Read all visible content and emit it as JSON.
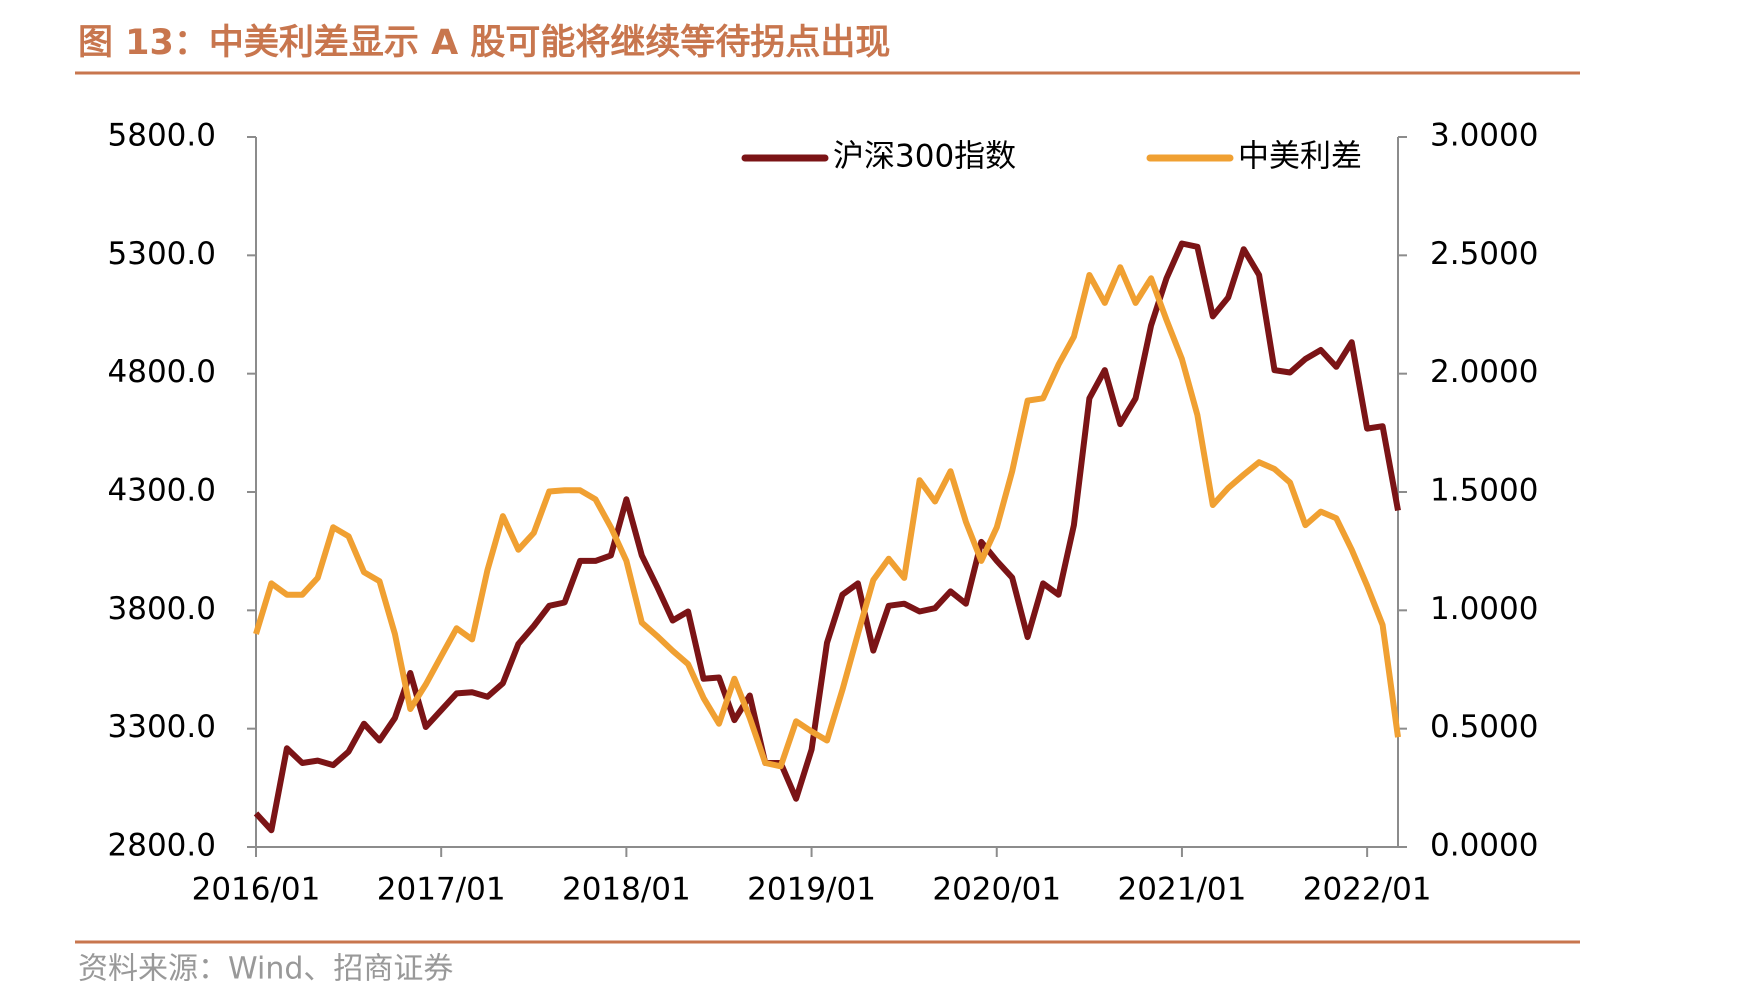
{
  "chart_data": {
    "type": "line",
    "title": "图 13：中美利差显示 A 股可能将继续等待拐点出现",
    "source": "资料来源：Wind、招商证券",
    "categories": [
      "2016/01",
      null,
      null,
      null,
      null,
      null,
      null,
      null,
      null,
      null,
      null,
      null,
      "2017/01",
      null,
      null,
      null,
      null,
      null,
      null,
      null,
      null,
      null,
      null,
      null,
      "2018/01",
      null,
      null,
      null,
      null,
      null,
      null,
      null,
      null,
      null,
      null,
      null,
      "2019/01",
      null,
      null,
      null,
      null,
      null,
      null,
      null,
      null,
      null,
      null,
      null,
      "2020/01",
      null,
      null,
      null,
      null,
      null,
      null,
      null,
      null,
      null,
      null,
      null,
      "2021/01",
      null,
      null,
      null,
      null,
      null,
      null,
      null,
      null,
      null,
      null,
      null,
      "2022/01",
      null,
      null
    ],
    "series": [
      {
        "name": "沪深300指数",
        "color": "#7b1416",
        "axis": "y",
        "values": [
          2942,
          2871,
          3217,
          3155,
          3165,
          3146,
          3203,
          3321,
          3250,
          3345,
          3535,
          3307,
          3378,
          3449,
          3454,
          3435,
          3492,
          3658,
          3734,
          3819,
          3833,
          4009,
          4009,
          4032,
          4269,
          4032,
          3899,
          3757,
          3795,
          3511,
          3516,
          3336,
          3440,
          3155,
          3155,
          3004,
          3212,
          3663,
          3866,
          3914,
          3630,
          3819,
          3828,
          3795,
          3809,
          3880,
          3828,
          4089,
          4009,
          3938,
          3687,
          3914,
          3866,
          4160,
          4696,
          4815,
          4587,
          4696,
          5004,
          5203,
          5350,
          5336,
          5042,
          5122,
          5326,
          5217,
          4815,
          4805,
          4862,
          4900,
          4829,
          4933,
          4568,
          4578,
          4222
        ]
      },
      {
        "name": "中美利差",
        "color": "#f0a032",
        "axis": "y2",
        "values": [
          0.9,
          1.114,
          1.066,
          1.066,
          1.137,
          1.351,
          1.313,
          1.161,
          1.123,
          0.9,
          0.583,
          0.687,
          0.806,
          0.924,
          0.877,
          1.171,
          1.398,
          1.256,
          1.327,
          1.502,
          1.507,
          1.507,
          1.469,
          1.351,
          1.209,
          0.948,
          0.891,
          0.829,
          0.773,
          0.63,
          0.521,
          0.711,
          0.545,
          0.355,
          0.341,
          0.531,
          0.488,
          0.45,
          0.664,
          0.9,
          1.128,
          1.218,
          1.137,
          1.55,
          1.46,
          1.588,
          1.374,
          1.209,
          1.351,
          1.588,
          1.886,
          1.896,
          2.038,
          2.156,
          2.417,
          2.299,
          2.45,
          2.299,
          2.403,
          2.227,
          2.062,
          1.825,
          1.445,
          1.517,
          1.573,
          1.626,
          1.597,
          1.54,
          1.36,
          1.417,
          1.389,
          1.256,
          1.104,
          0.938,
          0.464
        ]
      }
    ],
    "ylim": [
      2800,
      5800
    ],
    "yticks": [
      {
        "value": 2800,
        "label": "2800.0"
      },
      {
        "value": 3300,
        "label": "3300.0"
      },
      {
        "value": 3800,
        "label": "3800.0"
      },
      {
        "value": 4300,
        "label": "4300.0"
      },
      {
        "value": 4800,
        "label": "4800.0"
      },
      {
        "value": 5300,
        "label": "5300.0"
      },
      {
        "value": 5800,
        "label": "5800.0"
      }
    ],
    "y2lim": [
      0,
      3
    ],
    "y2ticks": [
      {
        "value": 0,
        "label": "0.0000"
      },
      {
        "value": 0.5,
        "label": "0.5000"
      },
      {
        "value": 1,
        "label": "1.0000"
      },
      {
        "value": 1.5,
        "label": "1.5000"
      },
      {
        "value": 2,
        "label": "2.0000"
      },
      {
        "value": 2.5,
        "label": "2.5000"
      },
      {
        "value": 3,
        "label": "3.0000"
      }
    ],
    "legend": "top-right",
    "grid": false
  }
}
